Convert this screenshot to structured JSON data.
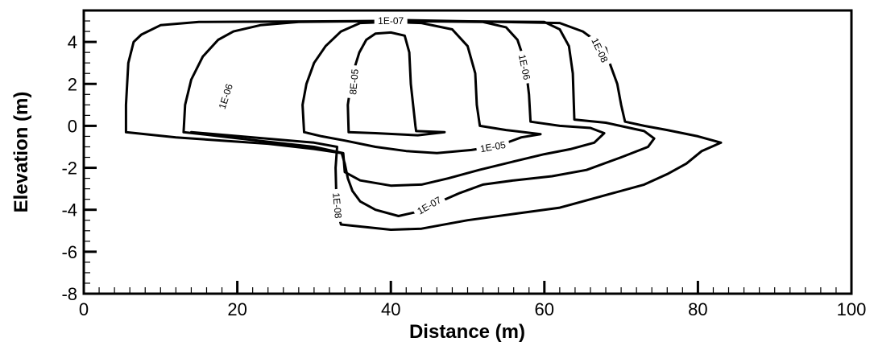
{
  "chart_data": {
    "type": "contour",
    "xlabel": "Distance (m)",
    "ylabel": "Elevation (m)",
    "xlim": [
      0,
      100
    ],
    "ylim": [
      -8,
      5.5
    ],
    "x_ticks": [
      0,
      20,
      40,
      60,
      80,
      100
    ],
    "y_ticks": [
      -8,
      -6,
      -4,
      -2,
      0,
      2,
      4
    ],
    "x_minor_step": 2,
    "y_minor_step": 0.5,
    "contours": [
      {
        "level": "8E-05",
        "points": [
          [
            34.5,
            -0.3
          ],
          [
            34.4,
            1.0
          ],
          [
            34.8,
            2.0
          ],
          [
            35.3,
            2.8
          ],
          [
            35.9,
            3.5
          ],
          [
            36.8,
            4.1
          ],
          [
            38.0,
            4.4
          ],
          [
            40.0,
            4.45
          ],
          [
            41.8,
            4.3
          ],
          [
            42.4,
            3.5
          ],
          [
            42.6,
            2.0
          ],
          [
            43.2,
            0.0
          ],
          [
            43.3,
            -0.25
          ],
          [
            47.0,
            -0.3
          ],
          [
            43.5,
            -0.45
          ],
          [
            38.0,
            -0.35
          ],
          [
            34.5,
            -0.3
          ]
        ],
        "labels": [
          {
            "text": "8E-05",
            "x": 35.2,
            "y": 2.1,
            "angle": -85
          }
        ]
      },
      {
        "level": "1E-05",
        "points": [
          [
            28.7,
            -0.3
          ],
          [
            28.5,
            1.0
          ],
          [
            29.0,
            2.0
          ],
          [
            30.0,
            3.0
          ],
          [
            31.5,
            3.8
          ],
          [
            33.5,
            4.5
          ],
          [
            36.0,
            4.9
          ],
          [
            40.0,
            4.95
          ],
          [
            44.0,
            4.9
          ],
          [
            48.0,
            4.6
          ],
          [
            50.0,
            3.8
          ],
          [
            51.0,
            2.5
          ],
          [
            51.2,
            1.0
          ],
          [
            51.6,
            0.0
          ],
          [
            55.0,
            -0.2
          ],
          [
            59.5,
            -0.4
          ],
          [
            57.0,
            -0.55
          ],
          [
            54.0,
            -0.95
          ],
          [
            50.5,
            -1.15
          ],
          [
            46.0,
            -1.3
          ],
          [
            42.0,
            -1.2
          ],
          [
            38.0,
            -1.0
          ],
          [
            34.0,
            -0.7
          ],
          [
            31.0,
            -0.5
          ],
          [
            28.7,
            -0.3
          ]
        ],
        "labels": [
          {
            "text": "1E-05",
            "x": 53.3,
            "y": -1.0,
            "angle": -10
          }
        ]
      },
      {
        "level": "1E-06",
        "points": [
          [
            13.0,
            -0.3
          ],
          [
            13.2,
            1.0
          ],
          [
            14.0,
            2.2
          ],
          [
            15.5,
            3.3
          ],
          [
            17.5,
            4.1
          ],
          [
            19.5,
            4.5
          ],
          [
            23.0,
            4.8
          ],
          [
            28.0,
            4.95
          ],
          [
            40.0,
            5.0
          ],
          [
            52.0,
            4.95
          ],
          [
            55.0,
            4.7
          ],
          [
            56.5,
            4.1
          ],
          [
            57.5,
            3.0
          ],
          [
            58.0,
            1.5
          ],
          [
            58.2,
            0.2
          ],
          [
            62.0,
            0.0
          ],
          [
            66.0,
            -0.1
          ],
          [
            67.8,
            -0.35
          ],
          [
            66.5,
            -0.8
          ],
          [
            63.5,
            -1.1
          ],
          [
            60.0,
            -1.35
          ],
          [
            56.0,
            -1.7
          ],
          [
            51.5,
            -2.1
          ],
          [
            47.5,
            -2.5
          ],
          [
            44.0,
            -2.8
          ],
          [
            40.0,
            -2.85
          ],
          [
            36.0,
            -2.6
          ],
          [
            34.0,
            -2.2
          ],
          [
            33.8,
            -1.3
          ],
          [
            30.0,
            -1.0
          ],
          [
            25.0,
            -0.8
          ],
          [
            19.0,
            -0.55
          ],
          [
            13.0,
            -0.3
          ]
        ],
        "labels": [
          {
            "text": "1E-06",
            "x": 18.5,
            "y": 1.4,
            "angle": -72
          },
          {
            "text": "1E-06",
            "x": 57.4,
            "y": 2.8,
            "angle": 78
          }
        ]
      },
      {
        "level": "1E-07",
        "points": [
          [
            5.5,
            -0.3
          ],
          [
            5.5,
            1.0
          ],
          [
            5.8,
            3.0
          ],
          [
            6.5,
            4.0
          ],
          [
            7.5,
            4.35
          ],
          [
            10.0,
            4.8
          ],
          [
            15.0,
            4.95
          ],
          [
            40.0,
            5.0
          ],
          [
            60.0,
            4.95
          ],
          [
            62.0,
            4.6
          ],
          [
            63.2,
            3.8
          ],
          [
            63.7,
            2.5
          ],
          [
            63.9,
            0.3
          ],
          [
            68.0,
            0.15
          ],
          [
            73.0,
            -0.25
          ],
          [
            74.3,
            -0.6
          ],
          [
            73.5,
            -1.0
          ],
          [
            70.0,
            -1.5
          ],
          [
            65.5,
            -2.1
          ],
          [
            61.0,
            -2.4
          ],
          [
            56.0,
            -2.6
          ],
          [
            52.0,
            -2.8
          ],
          [
            49.0,
            -3.2
          ],
          [
            46.5,
            -3.6
          ],
          [
            44.0,
            -4.05
          ],
          [
            41.0,
            -4.3
          ],
          [
            38.0,
            -4.0
          ],
          [
            36.0,
            -3.6
          ],
          [
            35.0,
            -3.1
          ],
          [
            34.4,
            -2.5
          ],
          [
            34.0,
            -1.8
          ],
          [
            33.6,
            -1.3
          ],
          [
            30.0,
            -1.1
          ],
          [
            24.0,
            -0.85
          ],
          [
            18.0,
            -0.7
          ],
          [
            12.0,
            -0.55
          ],
          [
            5.5,
            -0.3
          ]
        ],
        "labels": [
          {
            "text": "1E-07",
            "x": 40.0,
            "y": 5.0,
            "angle": 0
          },
          {
            "text": "1E-07",
            "x": 45.0,
            "y": -3.8,
            "angle": -30
          }
        ]
      },
      {
        "level": "1E-08",
        "points": [
          [
            14.0,
            -0.3
          ],
          [
            22.0,
            -0.55
          ],
          [
            30.0,
            -0.8
          ],
          [
            33.0,
            -1.0
          ],
          [
            32.8,
            -2.0
          ],
          [
            32.9,
            -3.3
          ],
          [
            33.0,
            -4.0
          ],
          [
            33.5,
            -4.7
          ],
          [
            40.0,
            -4.95
          ],
          [
            44.0,
            -4.9
          ],
          [
            50.0,
            -4.5
          ],
          [
            56.0,
            -4.2
          ],
          [
            62.0,
            -3.9
          ],
          [
            67.0,
            -3.4
          ],
          [
            73.0,
            -2.8
          ],
          [
            76.0,
            -2.3
          ],
          [
            78.5,
            -1.8
          ],
          [
            80.5,
            -1.2
          ],
          [
            83.0,
            -0.8
          ],
          [
            80.0,
            -0.5
          ],
          [
            76.0,
            -0.2
          ],
          [
            73.0,
            0.0
          ],
          [
            70.5,
            0.2
          ],
          [
            70.0,
            1.0
          ],
          [
            69.5,
            2.0
          ],
          [
            68.5,
            3.0
          ],
          [
            68.0,
            3.7
          ],
          [
            66.5,
            4.1
          ],
          [
            65.0,
            4.5
          ],
          [
            62.0,
            4.9
          ],
          [
            40.0,
            5.05
          ]
        ],
        "labels": [
          {
            "text": "1E-08",
            "x": 67.2,
            "y": 3.6,
            "angle": 65
          },
          {
            "text": "1E-08",
            "x": 33.0,
            "y": -3.8,
            "angle": 85
          }
        ]
      }
    ]
  }
}
